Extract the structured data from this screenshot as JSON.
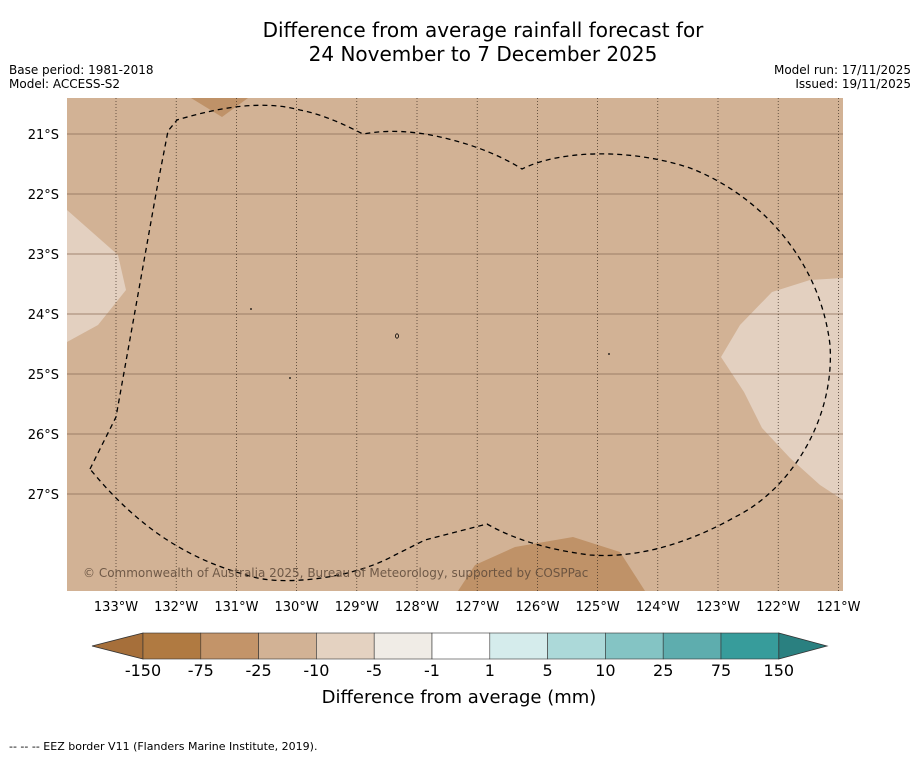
{
  "title": {
    "line1": "Difference from average rainfall forecast for",
    "line2": "24 November to 7 December 2025"
  },
  "meta": {
    "base_period": "Base period: 1981-2018",
    "model": "Model: ACCESS-S2",
    "model_run": "Model run: 17/11/2025",
    "issued": "Issued: 19/11/2025"
  },
  "map": {
    "lat_labels": [
      "21°S",
      "22°S",
      "23°S",
      "24°S",
      "25°S",
      "26°S",
      "27°S"
    ],
    "lon_labels": [
      "133°W",
      "132°W",
      "131°W",
      "130°W",
      "129°W",
      "128°W",
      "127°W",
      "126°W",
      "125°W",
      "124°W",
      "123°W",
      "122°W",
      "121°W"
    ],
    "copyright": "© Commonwealth of Australia 2025, Bureau of Meteorology, supported by COSPPac",
    "colors": {
      "background_class": "#d2b295",
      "wetter_patch": "#e3d0c0",
      "drier_patch": "#bf9268"
    }
  },
  "colorbar": {
    "title": "Difference from average (mm)",
    "tick_labels": [
      "-150",
      "-75",
      "-25",
      "-10",
      "-5",
      "-1",
      "1",
      "5",
      "10",
      "25",
      "75",
      "150"
    ],
    "colors": [
      "#a66f3a",
      "#b07a41",
      "#c39469",
      "#d2b295",
      "#e4d2c1",
      "#f0ece6",
      "#ffffff",
      "#d5ecec",
      "#acd9d9",
      "#84c4c4",
      "#5eadae",
      "#379c9b",
      "#2a8080"
    ]
  },
  "footer": {
    "legend": "--  --  -- EEZ border V11 (Flanders Marine Institute, 2019)."
  }
}
